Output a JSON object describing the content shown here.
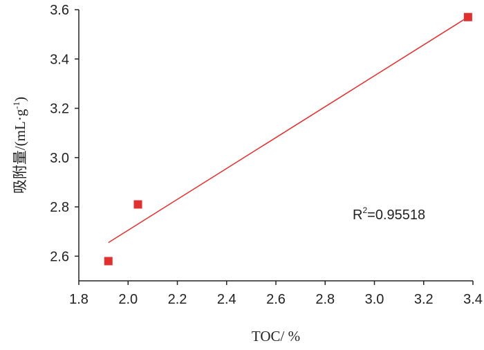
{
  "chart_data": {
    "type": "scatter",
    "xlabel": "TOC/ %",
    "ylabel": "吸附量/(mL·g",
    "ylabel_sup": "-1",
    "ylabel_close": ")",
    "xlim": [
      1.8,
      3.4
    ],
    "ylim": [
      2.5,
      3.6
    ],
    "x_ticks": [
      "1.8",
      "2.0",
      "2.2",
      "2.4",
      "2.6",
      "2.8",
      "3.0",
      "3.2",
      "3.4"
    ],
    "y_ticks": [
      "2.6",
      "2.8",
      "3.0",
      "3.2",
      "3.4",
      "3.6"
    ],
    "grid": false,
    "series": [
      {
        "marker": "square",
        "color": "#e03030",
        "points": [
          {
            "x": 1.92,
            "y": 2.58
          },
          {
            "x": 2.04,
            "y": 2.81
          },
          {
            "x": 3.38,
            "y": 3.57
          }
        ]
      }
    ],
    "trendline": {
      "color": "#e03030",
      "start": {
        "x": 1.92,
        "y": 2.655
      },
      "end": {
        "x": 3.38,
        "y": 3.57
      }
    },
    "annotation": {
      "r2_prefix": "R",
      "r2_sup": "2",
      "r2_value": "=0.95518"
    }
  }
}
